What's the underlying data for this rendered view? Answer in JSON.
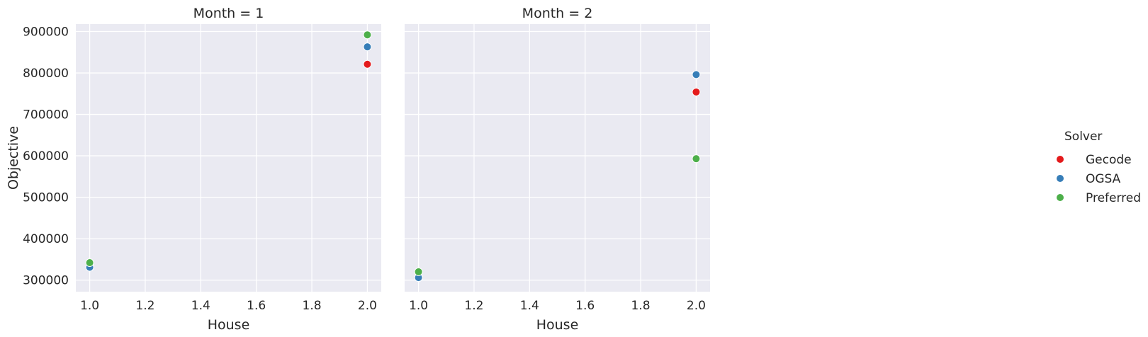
{
  "chart_data": [
    {
      "type": "scatter",
      "title": "Month = 1",
      "xlabel": "House",
      "ylabel": "Objective",
      "xlim": [
        0.95,
        2.05
      ],
      "ylim": [
        272000,
        918000
      ],
      "xticks": [
        1.0,
        1.2,
        1.4,
        1.6,
        1.8,
        2.0
      ],
      "xtick_labels": [
        "1.0",
        "1.2",
        "1.4",
        "1.6",
        "1.8",
        "2.0"
      ],
      "yticks": [
        300000,
        400000,
        500000,
        600000,
        700000,
        800000,
        900000
      ],
      "ytick_labels": [
        "300000",
        "400000",
        "500000",
        "600000",
        "700000",
        "800000",
        "900000"
      ],
      "grid": true,
      "series": [
        {
          "name": "Gecode",
          "color": "#e41a1c",
          "points": [
            {
              "x": 1.0,
              "y": 332000
            },
            {
              "x": 2.0,
              "y": 821000
            }
          ]
        },
        {
          "name": "OGSA",
          "color": "#377eb8",
          "points": [
            {
              "x": 1.0,
              "y": 331000
            },
            {
              "x": 2.0,
              "y": 863000
            }
          ]
        },
        {
          "name": "Preferred",
          "color": "#4daf4a",
          "points": [
            {
              "x": 1.0,
              "y": 342000
            },
            {
              "x": 2.0,
              "y": 892000
            }
          ]
        }
      ]
    },
    {
      "type": "scatter",
      "title": "Month = 2",
      "xlabel": "House",
      "ylabel": "",
      "xlim": [
        0.95,
        2.05
      ],
      "ylim": [
        272000,
        918000
      ],
      "xticks": [
        1.0,
        1.2,
        1.4,
        1.6,
        1.8,
        2.0
      ],
      "xtick_labels": [
        "1.0",
        "1.2",
        "1.4",
        "1.6",
        "1.8",
        "2.0"
      ],
      "yticks": [
        300000,
        400000,
        500000,
        600000,
        700000,
        800000,
        900000
      ],
      "ytick_labels": [],
      "grid": true,
      "series": [
        {
          "name": "Gecode",
          "color": "#e41a1c",
          "points": [
            {
              "x": 1.0,
              "y": 306000
            },
            {
              "x": 2.0,
              "y": 754000
            }
          ]
        },
        {
          "name": "OGSA",
          "color": "#377eb8",
          "points": [
            {
              "x": 1.0,
              "y": 306000
            },
            {
              "x": 2.0,
              "y": 796000
            }
          ]
        },
        {
          "name": "Preferred",
          "color": "#4daf4a",
          "points": [
            {
              "x": 1.0,
              "y": 320000
            },
            {
              "x": 2.0,
              "y": 593000
            }
          ]
        }
      ]
    }
  ],
  "legend": {
    "title": "Solver",
    "placement": "right",
    "items": [
      {
        "label": "Gecode",
        "color": "#e41a1c"
      },
      {
        "label": "OGSA",
        "color": "#377eb8"
      },
      {
        "label": "Preferred",
        "color": "#4daf4a"
      }
    ]
  },
  "style": {
    "panel_background": "#eaeaf2",
    "grid_color": "#ffffff",
    "text_color": "#262626"
  }
}
